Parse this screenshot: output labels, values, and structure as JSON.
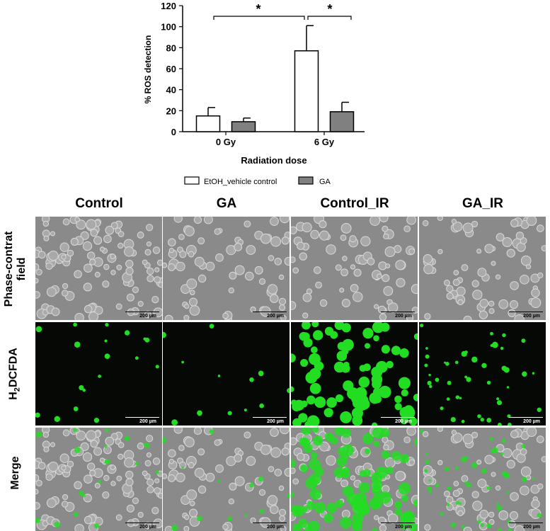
{
  "chart_data": {
    "type": "bar",
    "ylabel": "% ROS detection",
    "xlabel": "Radiation dose",
    "ylim": [
      0,
      120
    ],
    "yticks": [
      "0",
      "20",
      "40",
      "60",
      "80",
      "100",
      "120"
    ],
    "categories": [
      "0 Gy",
      "6 Gy"
    ],
    "series": [
      {
        "name": "EtOH_vehicle control",
        "values": [
          15,
          77
        ],
        "errors": [
          8,
          24
        ],
        "color": "#ffffff"
      },
      {
        "name": "GA",
        "values": [
          9.5,
          19
        ],
        "errors": [
          3.5,
          9
        ],
        "color": "#808080"
      }
    ],
    "significance": [
      {
        "label": "*",
        "between": "0 Gy EtOH_vehicle control vs 6 Gy EtOH_vehicle control"
      },
      {
        "label": "*",
        "between": "6 Gy EtOH_vehicle control vs 6 Gy GA"
      }
    ],
    "legend_position": "bottom"
  },
  "micrographs": {
    "columns": [
      "Control",
      "GA",
      "Control_IR",
      "GA_IR"
    ],
    "rows": [
      {
        "label_main": "Phase-contrat",
        "label_line2": "field"
      },
      {
        "label_main": "H",
        "label_sub": "2",
        "label_rest": "DCFDA"
      },
      {
        "label_main": "Merge"
      }
    ],
    "scale_bar_label": "200 µm",
    "fluorescence_color": "#22dd22"
  }
}
